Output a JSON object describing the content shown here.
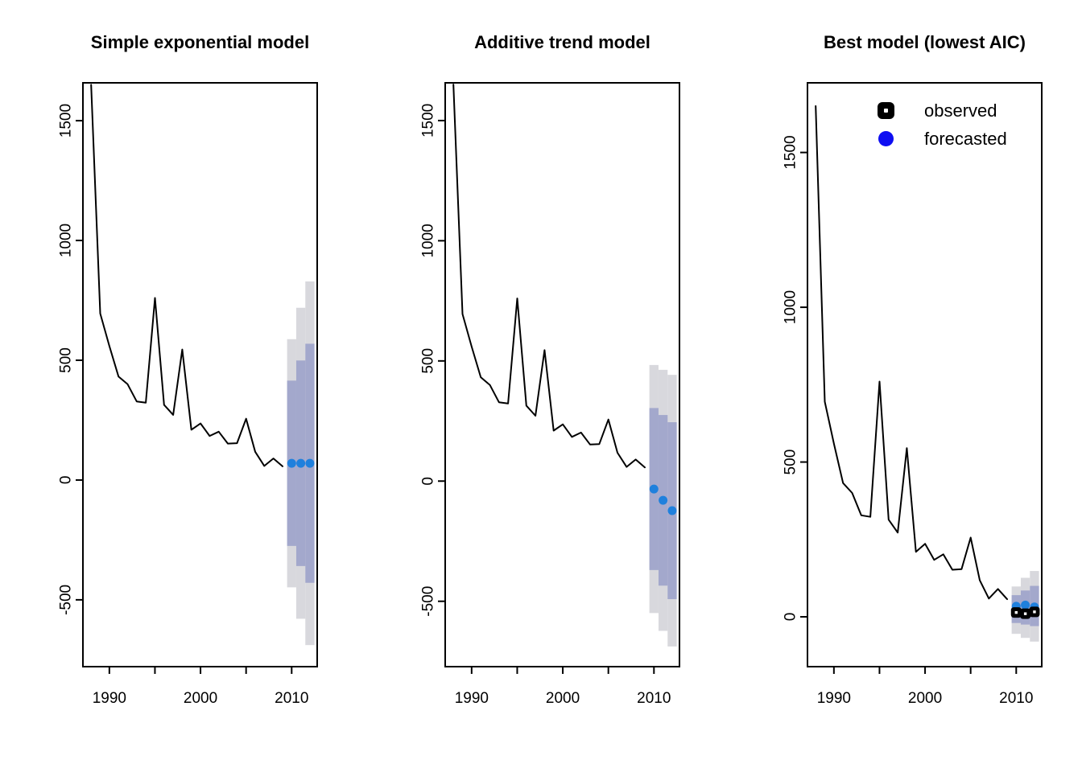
{
  "figure": {
    "background": "#ffffff"
  },
  "chart_data": {
    "type": "line",
    "xlim": [
      1987.1,
      2012.8
    ],
    "years": [
      1988,
      1989,
      1990,
      1991,
      1992,
      1993,
      1994,
      1995,
      1996,
      1997,
      1998,
      1999,
      2000,
      2001,
      2002,
      2003,
      2004,
      2005,
      2006,
      2007,
      2008,
      2009
    ],
    "historical": [
      1650,
      695,
      560,
      432,
      400,
      328,
      323,
      760,
      314,
      272,
      545,
      210,
      236,
      184,
      202,
      152,
      154,
      256,
      118,
      59,
      90,
      57
    ],
    "forecast_years": [
      2010,
      2011,
      2012
    ],
    "colors": {
      "line": "#000000",
      "band80": "#A3A8CC",
      "band95": "#D8D8DD",
      "forecast_dot": "#1F80DD",
      "legend_forecast_dot": "#0E0EF2",
      "observed_marker": "#000000",
      "axis": "#000000"
    },
    "panels": [
      {
        "title": "Simple exponential model",
        "ylim": [
          -779,
          1658
        ],
        "yticks": [
          -500,
          0,
          500,
          1000,
          1500
        ],
        "xticks": [
          1990,
          1995,
          2000,
          2005,
          2010
        ],
        "xtick_labels": [
          1990,
          2000,
          2010
        ],
        "forecast_mean": [
          70,
          70,
          70
        ],
        "band80": [
          [
            -275,
            415
          ],
          [
            -359,
            499
          ],
          [
            -429,
            569
          ]
        ],
        "band95": [
          [
            -448,
            588
          ],
          [
            -579,
            719
          ],
          [
            -689,
            829
          ]
        ]
      },
      {
        "title": "Additive trend model",
        "ylim": [
          -772,
          1657
        ],
        "yticks": [
          -500,
          0,
          500,
          1000,
          1500
        ],
        "xticks": [
          1990,
          1995,
          2000,
          2005,
          2010
        ],
        "xtick_labels": [
          1990,
          2000,
          2010
        ],
        "forecast_mean": [
          -33,
          -80,
          -123
        ],
        "band80": [
          [
            -370,
            304
          ],
          [
            -435,
            275
          ],
          [
            -491,
            245
          ]
        ],
        "band95": [
          [
            -549,
            483
          ],
          [
            -623,
            463
          ],
          [
            -688,
            442
          ]
        ]
      },
      {
        "title": "Best model (lowest AIC)",
        "ylim": [
          -161,
          1725
        ],
        "yticks": [
          0,
          500,
          1000,
          1500
        ],
        "xticks": [
          1990,
          1995,
          2000,
          2005,
          2010
        ],
        "xtick_labels": [
          1990,
          2000,
          2010
        ],
        "forecast_mean": [
          34,
          38,
          32
        ],
        "band80": [
          [
            -20,
            70
          ],
          [
            -25,
            85
          ],
          [
            -30,
            100
          ]
        ],
        "band95": [
          [
            -55,
            98
          ],
          [
            -68,
            126
          ],
          [
            -80,
            148
          ]
        ],
        "observed_future": [
          14,
          10,
          16
        ],
        "legend": [
          {
            "label": "observed",
            "marker": "black-square-white-dot"
          },
          {
            "label": "forecasted",
            "marker": "blue-circle"
          }
        ]
      }
    ]
  }
}
